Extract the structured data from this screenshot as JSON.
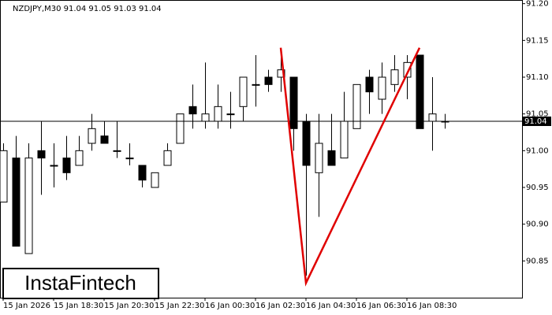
{
  "chart_data": {
    "type": "candlestick",
    "title": "NZDJPY,M30  91.04 91.05 91.03 91.04",
    "watermark": "InstaFintech",
    "categories": [
      "15 Jan 2026",
      null,
      null,
      null,
      "15 Jan 18:30",
      null,
      null,
      null,
      "15 Jan 20:30",
      null,
      null,
      null,
      "15 Jan 22:30",
      null,
      null,
      null,
      "16 Jan 00:30",
      null,
      null,
      null,
      "16 Jan 02:30",
      null,
      null,
      null,
      "16 Jan 04:30",
      null,
      null,
      null,
      "16 Jan 06:30",
      null,
      null,
      null,
      "16 Jan 08:30",
      null,
      null,
      null
    ],
    "open": [
      90.93,
      90.99,
      90.86,
      91.0,
      90.98,
      90.99,
      90.98,
      91.01,
      91.02,
      91.0,
      90.99,
      90.98,
      90.95,
      90.98,
      91.01,
      91.06,
      91.04,
      91.04,
      91.05,
      91.06,
      91.09,
      91.1,
      91.1,
      91.1,
      91.04,
      90.97,
      91.0,
      90.99,
      91.03,
      91.1,
      91.07,
      91.09,
      91.1,
      91.13,
      91.04,
      91.04
    ],
    "high": [
      91.01,
      91.02,
      91.01,
      91.04,
      91.01,
      91.02,
      91.02,
      91.05,
      91.04,
      91.04,
      91.01,
      90.98,
      90.97,
      91.01,
      91.05,
      91.09,
      91.12,
      91.09,
      91.08,
      91.1,
      91.13,
      91.11,
      91.13,
      91.1,
      91.05,
      91.05,
      91.05,
      91.08,
      91.09,
      91.11,
      91.12,
      91.13,
      91.13,
      91.13,
      91.1,
      91.05
    ],
    "low": [
      90.93,
      90.87,
      90.86,
      90.94,
      90.95,
      90.96,
      90.98,
      91.0,
      91.01,
      90.99,
      90.98,
      90.95,
      90.95,
      90.98,
      91.01,
      91.03,
      91.03,
      91.03,
      91.03,
      91.04,
      91.06,
      91.08,
      91.08,
      91.0,
      90.83,
      90.91,
      90.98,
      90.99,
      91.03,
      91.05,
      91.05,
      91.08,
      91.07,
      91.03,
      91.0,
      91.03
    ],
    "close": [
      91.0,
      90.87,
      90.99,
      90.99,
      90.98,
      90.97,
      91.0,
      91.03,
      91.01,
      91.0,
      90.99,
      90.96,
      90.97,
      91.0,
      91.05,
      91.05,
      91.05,
      91.06,
      91.05,
      91.1,
      91.09,
      91.09,
      91.11,
      91.03,
      90.98,
      91.01,
      90.98,
      91.04,
      91.09,
      91.08,
      91.1,
      91.11,
      91.12,
      91.03,
      91.05,
      91.04
    ],
    "up_color": "#ffffff",
    "down_color": "#000000",
    "last_price": 91.04,
    "pattern": {
      "color": "#e00000",
      "points": [
        {
          "index": 22,
          "value": 91.14
        },
        {
          "index": 24,
          "value": 90.82
        },
        {
          "index": 33,
          "value": 91.14
        }
      ]
    },
    "ylim": [
      90.8,
      91.205
    ],
    "yticks": [
      90.85,
      {
        "value": 90.9,
        "label": "90.90"
      },
      90.95,
      {
        "value": 91.0,
        "label": "91.00"
      },
      91.05,
      {
        "value": 91.1,
        "label": "91.10"
      },
      91.15,
      {
        "value": 91.2,
        "label": "91.20"
      }
    ]
  }
}
